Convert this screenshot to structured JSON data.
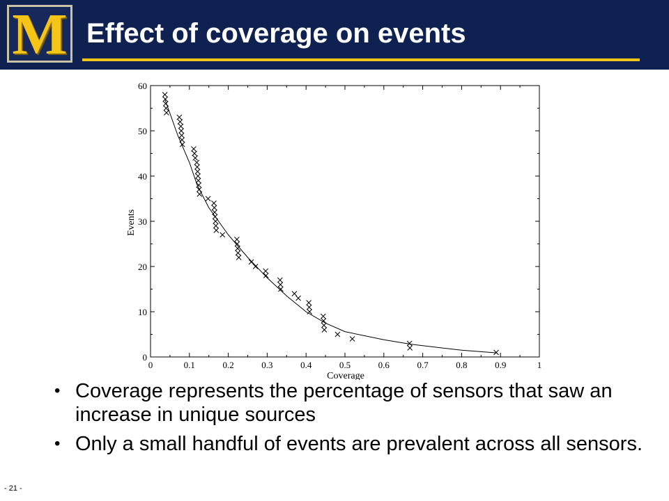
{
  "slide": {
    "logo_letter": "M",
    "title": "Effect of coverage on events",
    "page_number": "- 21 -",
    "bullets": [
      "Coverage represents the percentage of sensors that saw an increase in unique sources",
      "Only a small handful of events are prevalent across all sensors."
    ]
  },
  "colors": {
    "header_bg": "#0e2150",
    "title_rule": "#f0c419",
    "logo_gold": "#f4c416"
  },
  "chart_data": {
    "type": "scatter",
    "xlabel": "Coverage",
    "ylabel": "Events",
    "xlim": [
      0,
      1
    ],
    "ylim": [
      0,
      60
    ],
    "x_ticks": [
      "0",
      "0.1",
      "0.2",
      "0.3",
      "0.4",
      "0.5",
      "0.6",
      "0.7",
      "0.8",
      "0.9",
      "1"
    ],
    "y_ticks": [
      "0",
      "10",
      "20",
      "30",
      "40",
      "50",
      "60"
    ],
    "grid": false,
    "legend": "none",
    "series": [
      {
        "marker": "x",
        "points": [
          [
            0.037,
            58
          ],
          [
            0.038,
            57
          ],
          [
            0.039,
            56
          ],
          [
            0.04,
            55
          ],
          [
            0.041,
            54
          ],
          [
            0.074,
            53
          ],
          [
            0.076,
            52
          ],
          [
            0.078,
            51
          ],
          [
            0.079,
            50
          ],
          [
            0.08,
            49
          ],
          [
            0.081,
            48
          ],
          [
            0.082,
            47
          ],
          [
            0.111,
            46
          ],
          [
            0.113,
            45
          ],
          [
            0.115,
            44
          ],
          [
            0.119,
            43
          ],
          [
            0.12,
            42
          ],
          [
            0.121,
            41
          ],
          [
            0.122,
            40
          ],
          [
            0.123,
            39
          ],
          [
            0.124,
            38
          ],
          [
            0.125,
            37
          ],
          [
            0.126,
            36
          ],
          [
            0.148,
            35
          ],
          [
            0.163,
            34
          ],
          [
            0.164,
            33
          ],
          [
            0.165,
            32
          ],
          [
            0.166,
            31
          ],
          [
            0.167,
            30
          ],
          [
            0.168,
            29
          ],
          [
            0.169,
            28
          ],
          [
            0.185,
            27
          ],
          [
            0.222,
            26
          ],
          [
            0.223,
            25
          ],
          [
            0.224,
            24
          ],
          [
            0.225,
            23
          ],
          [
            0.227,
            22
          ],
          [
            0.259,
            21
          ],
          [
            0.27,
            20
          ],
          [
            0.296,
            19
          ],
          [
            0.297,
            18
          ],
          [
            0.333,
            17
          ],
          [
            0.334,
            16
          ],
          [
            0.335,
            15
          ],
          [
            0.37,
            14
          ],
          [
            0.38,
            13
          ],
          [
            0.407,
            12
          ],
          [
            0.408,
            11
          ],
          [
            0.409,
            10
          ],
          [
            0.444,
            9
          ],
          [
            0.445,
            8
          ],
          [
            0.446,
            7
          ],
          [
            0.447,
            6
          ],
          [
            0.481,
            5
          ],
          [
            0.519,
            4
          ],
          [
            0.666,
            3
          ],
          [
            0.667,
            2
          ],
          [
            0.889,
            1
          ]
        ]
      },
      {
        "marker": "line",
        "points": [
          [
            0.037,
            57
          ],
          [
            0.07,
            49
          ],
          [
            0.1,
            43
          ],
          [
            0.12,
            38
          ],
          [
            0.15,
            33
          ],
          [
            0.2,
            27
          ],
          [
            0.25,
            22
          ],
          [
            0.3,
            17.5
          ],
          [
            0.35,
            13.5
          ],
          [
            0.4,
            10
          ],
          [
            0.45,
            7.5
          ],
          [
            0.5,
            5.6
          ],
          [
            0.6,
            3.8
          ],
          [
            0.67,
            2.8
          ],
          [
            0.8,
            1.5
          ],
          [
            0.89,
            0.9
          ]
        ]
      }
    ]
  }
}
